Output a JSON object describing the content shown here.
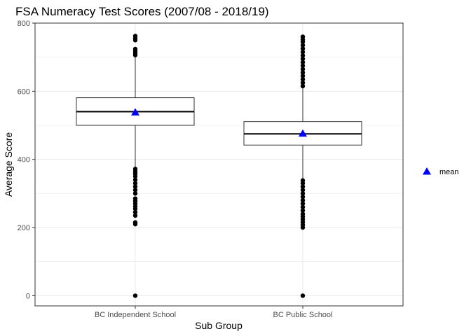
{
  "chart_data": {
    "type": "box",
    "title": "FSA Numeracy Test Scores (2007/08 - 2018/19)",
    "xlabel": "Sub Group",
    "ylabel": "Average Score",
    "ylim": [
      -30,
      800
    ],
    "yticks": [
      0,
      200,
      400,
      600,
      800
    ],
    "grid": true,
    "legend_position": "right",
    "legend_entries": [
      {
        "label": "mean",
        "marker": "triangle",
        "color": "#0000ff"
      }
    ],
    "categories": [
      "BC Independent School",
      "BC Public School"
    ],
    "boxes": [
      {
        "category": "BC Independent School",
        "q1": 500,
        "median": 540,
        "q3": 581,
        "whisker_low": 378,
        "whisker_high": 700,
        "mean": 538,
        "outliers": [
          0,
          210,
          215,
          235,
          245,
          255,
          262,
          270,
          278,
          285,
          300,
          310,
          320,
          330,
          340,
          350,
          358,
          365,
          372,
          706,
          712,
          718,
          724,
          750,
          756,
          762
        ]
      },
      {
        "category": "BC Public School",
        "q1": 442,
        "median": 475,
        "q3": 511,
        "whisker_low": 342,
        "whisker_high": 611,
        "mean": 476,
        "outliers": [
          0,
          200,
          208,
          216,
          224,
          232,
          240,
          250,
          260,
          270,
          280,
          290,
          300,
          310,
          320,
          330,
          338,
          615,
          625,
          635,
          645,
          655,
          665,
          675,
          685,
          695,
          705,
          715,
          725,
          735,
          745,
          752,
          760
        ]
      }
    ],
    "colors": {
      "mean_marker": "#0000ff",
      "points": "#000000",
      "grid": "#ebebeb",
      "panel_border": "#333333"
    }
  }
}
